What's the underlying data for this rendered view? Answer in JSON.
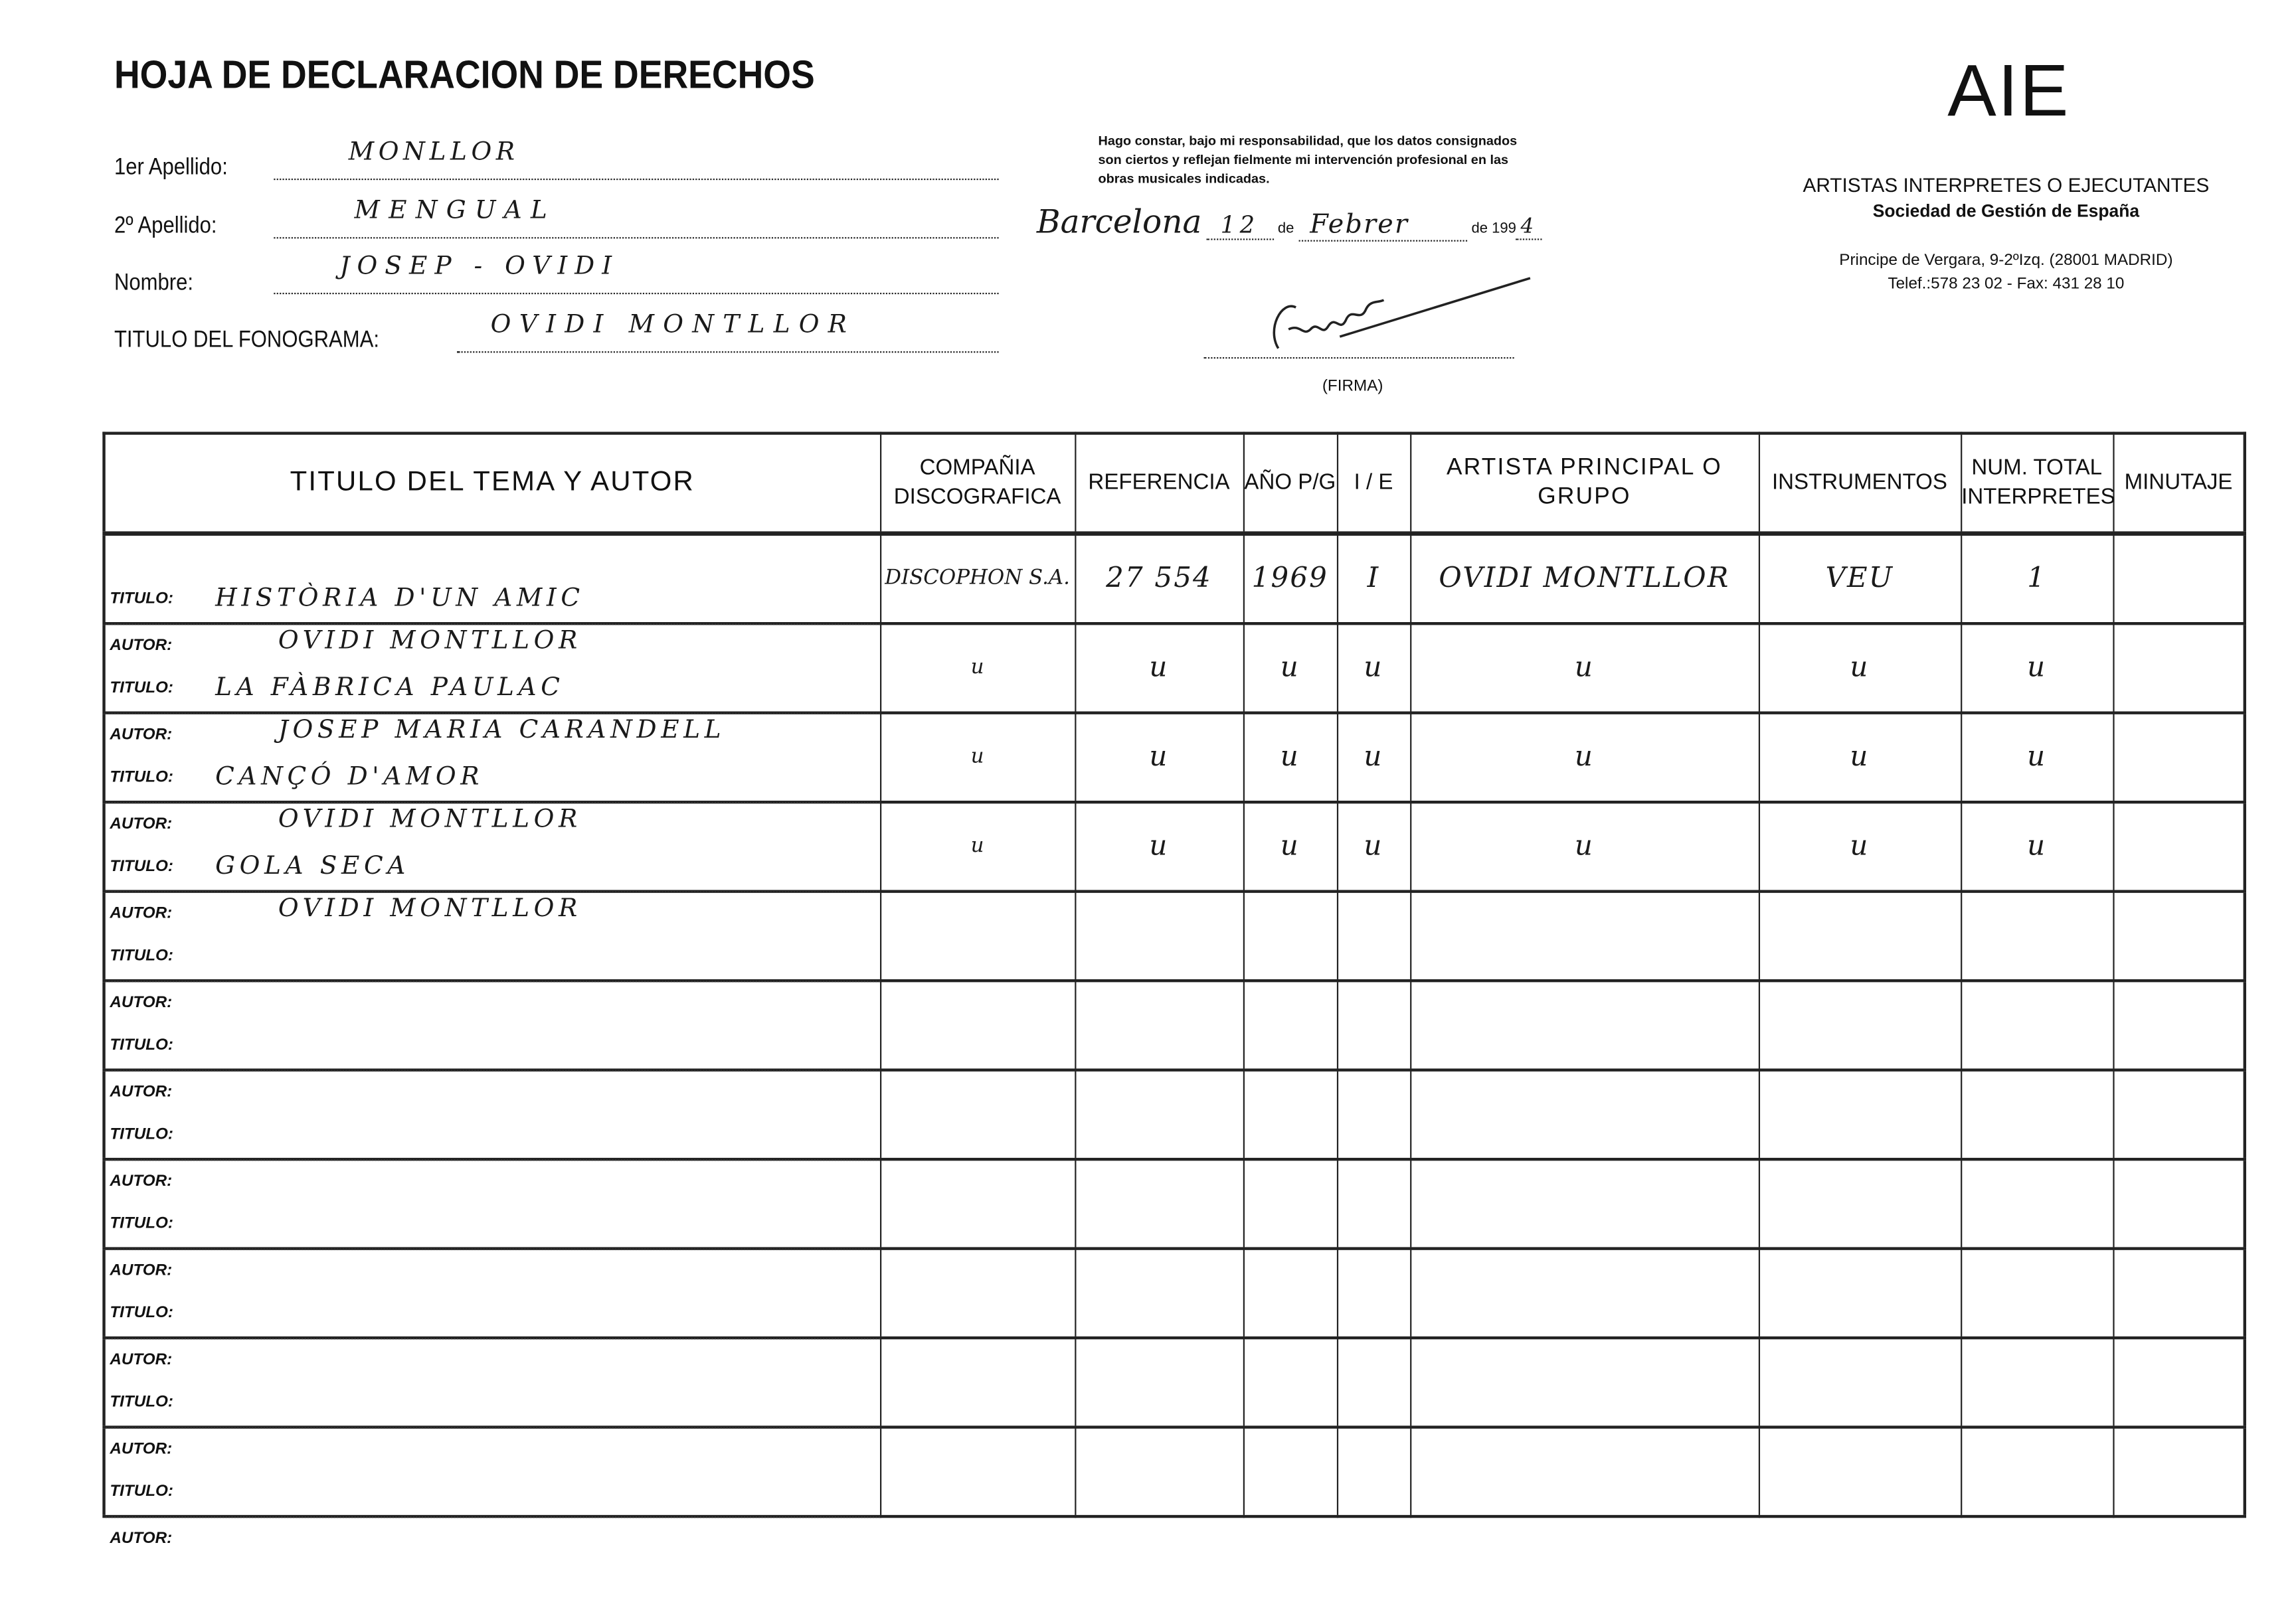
{
  "header": {
    "title": "HOJA DE DECLARACION DE DERECHOS",
    "fields": [
      {
        "label": "1er Apellido:",
        "value": "MONLLOR"
      },
      {
        "label": "2º Apellido:",
        "value": "MENGUAL"
      },
      {
        "label": "Nombre:",
        "value": "JOSEP - OVIDI"
      },
      {
        "label": "TITULO DEL FONOGRAMA:",
        "value": "OVIDI MONTLLOR"
      }
    ],
    "statement": [
      "Hago constar, bajo mi responsabilidad, que los datos consignados",
      "son ciertos y reflejan fielmente mi intervención profesional en las",
      "obras musicales indicadas."
    ],
    "place": "Barcelona",
    "day": "12",
    "de1": "de",
    "month": "Febrer",
    "de2": "de 199",
    "year_digit": "4",
    "signature_label": "(FIRMA)"
  },
  "org": {
    "logo": "AIE",
    "name": "ARTISTAS INTERPRETES O EJECUTANTES",
    "subtitle": "Sociedad de Gestión de España",
    "address": "Principe de Vergara, 9-2ºIzq. (28001 MADRID)",
    "phone": "Telef.:578 23 02 - Fax: 431 28 10"
  },
  "table": {
    "headers": [
      "TITULO DEL TEMA Y AUTOR",
      "COMPAÑIA DISCOGRAFICA",
      "REFERENCIA",
      "AÑO P/G",
      "I / E",
      "ARTISTA PRINCIPAL O GRUPO",
      "INSTRUMENTOS",
      "NUM. TOTAL INTERPRETES",
      "MINUTAJE"
    ],
    "titulo_label": "TITULO:",
    "autor_label": "AUTOR:",
    "rows": [
      {
        "titulo": "HISTÒRIA D'UN AMIC",
        "autor": "OVIDI MONTLLOR",
        "compania": "DISCOPHON S.A.",
        "referencia": "27 554",
        "ano": "1969",
        "ie": "I",
        "artista": "OVIDI MONTLLOR",
        "instrumentos": "VEU",
        "num": "1",
        "minutaje": ""
      },
      {
        "titulo": "LA FÀBRICA PAULAC",
        "autor": "JOSEP MARIA CARANDELL",
        "compania": "u",
        "referencia": "u",
        "ano": "u",
        "ie": "u",
        "artista": "u",
        "instrumentos": "u",
        "num": "u",
        "minutaje": ""
      },
      {
        "titulo": "CANÇÓ D'AMOR",
        "autor": "OVIDI MONTLLOR",
        "compania": "u",
        "referencia": "u",
        "ano": "u",
        "ie": "u",
        "artista": "u",
        "instrumentos": "u",
        "num": "u",
        "minutaje": ""
      },
      {
        "titulo": "GOLA SECA",
        "autor": "OVIDI MONTLLOR",
        "compania": "u",
        "referencia": "u",
        "ano": "u",
        "ie": "u",
        "artista": "u",
        "instrumentos": "u",
        "num": "u",
        "minutaje": ""
      },
      {
        "titulo": "",
        "autor": "",
        "compania": "",
        "referencia": "",
        "ano": "",
        "ie": "",
        "artista": "",
        "instrumentos": "",
        "num": "",
        "minutaje": ""
      },
      {
        "titulo": "",
        "autor": "",
        "compania": "",
        "referencia": "",
        "ano": "",
        "ie": "",
        "artista": "",
        "instrumentos": "",
        "num": "",
        "minutaje": ""
      },
      {
        "titulo": "",
        "autor": "",
        "compania": "",
        "referencia": "",
        "ano": "",
        "ie": "",
        "artista": "",
        "instrumentos": "",
        "num": "",
        "minutaje": ""
      },
      {
        "titulo": "",
        "autor": "",
        "compania": "",
        "referencia": "",
        "ano": "",
        "ie": "",
        "artista": "",
        "instrumentos": "",
        "num": "",
        "minutaje": ""
      },
      {
        "titulo": "",
        "autor": "",
        "compania": "",
        "referencia": "",
        "ano": "",
        "ie": "",
        "artista": "",
        "instrumentos": "",
        "num": "",
        "minutaje": ""
      },
      {
        "titulo": "",
        "autor": "",
        "compania": "",
        "referencia": "",
        "ano": "",
        "ie": "",
        "artista": "",
        "instrumentos": "",
        "num": "",
        "minutaje": ""
      },
      {
        "titulo": "",
        "autor": "",
        "compania": "",
        "referencia": "",
        "ano": "",
        "ie": "",
        "artista": "",
        "instrumentos": "",
        "num": "",
        "minutaje": ""
      }
    ]
  }
}
